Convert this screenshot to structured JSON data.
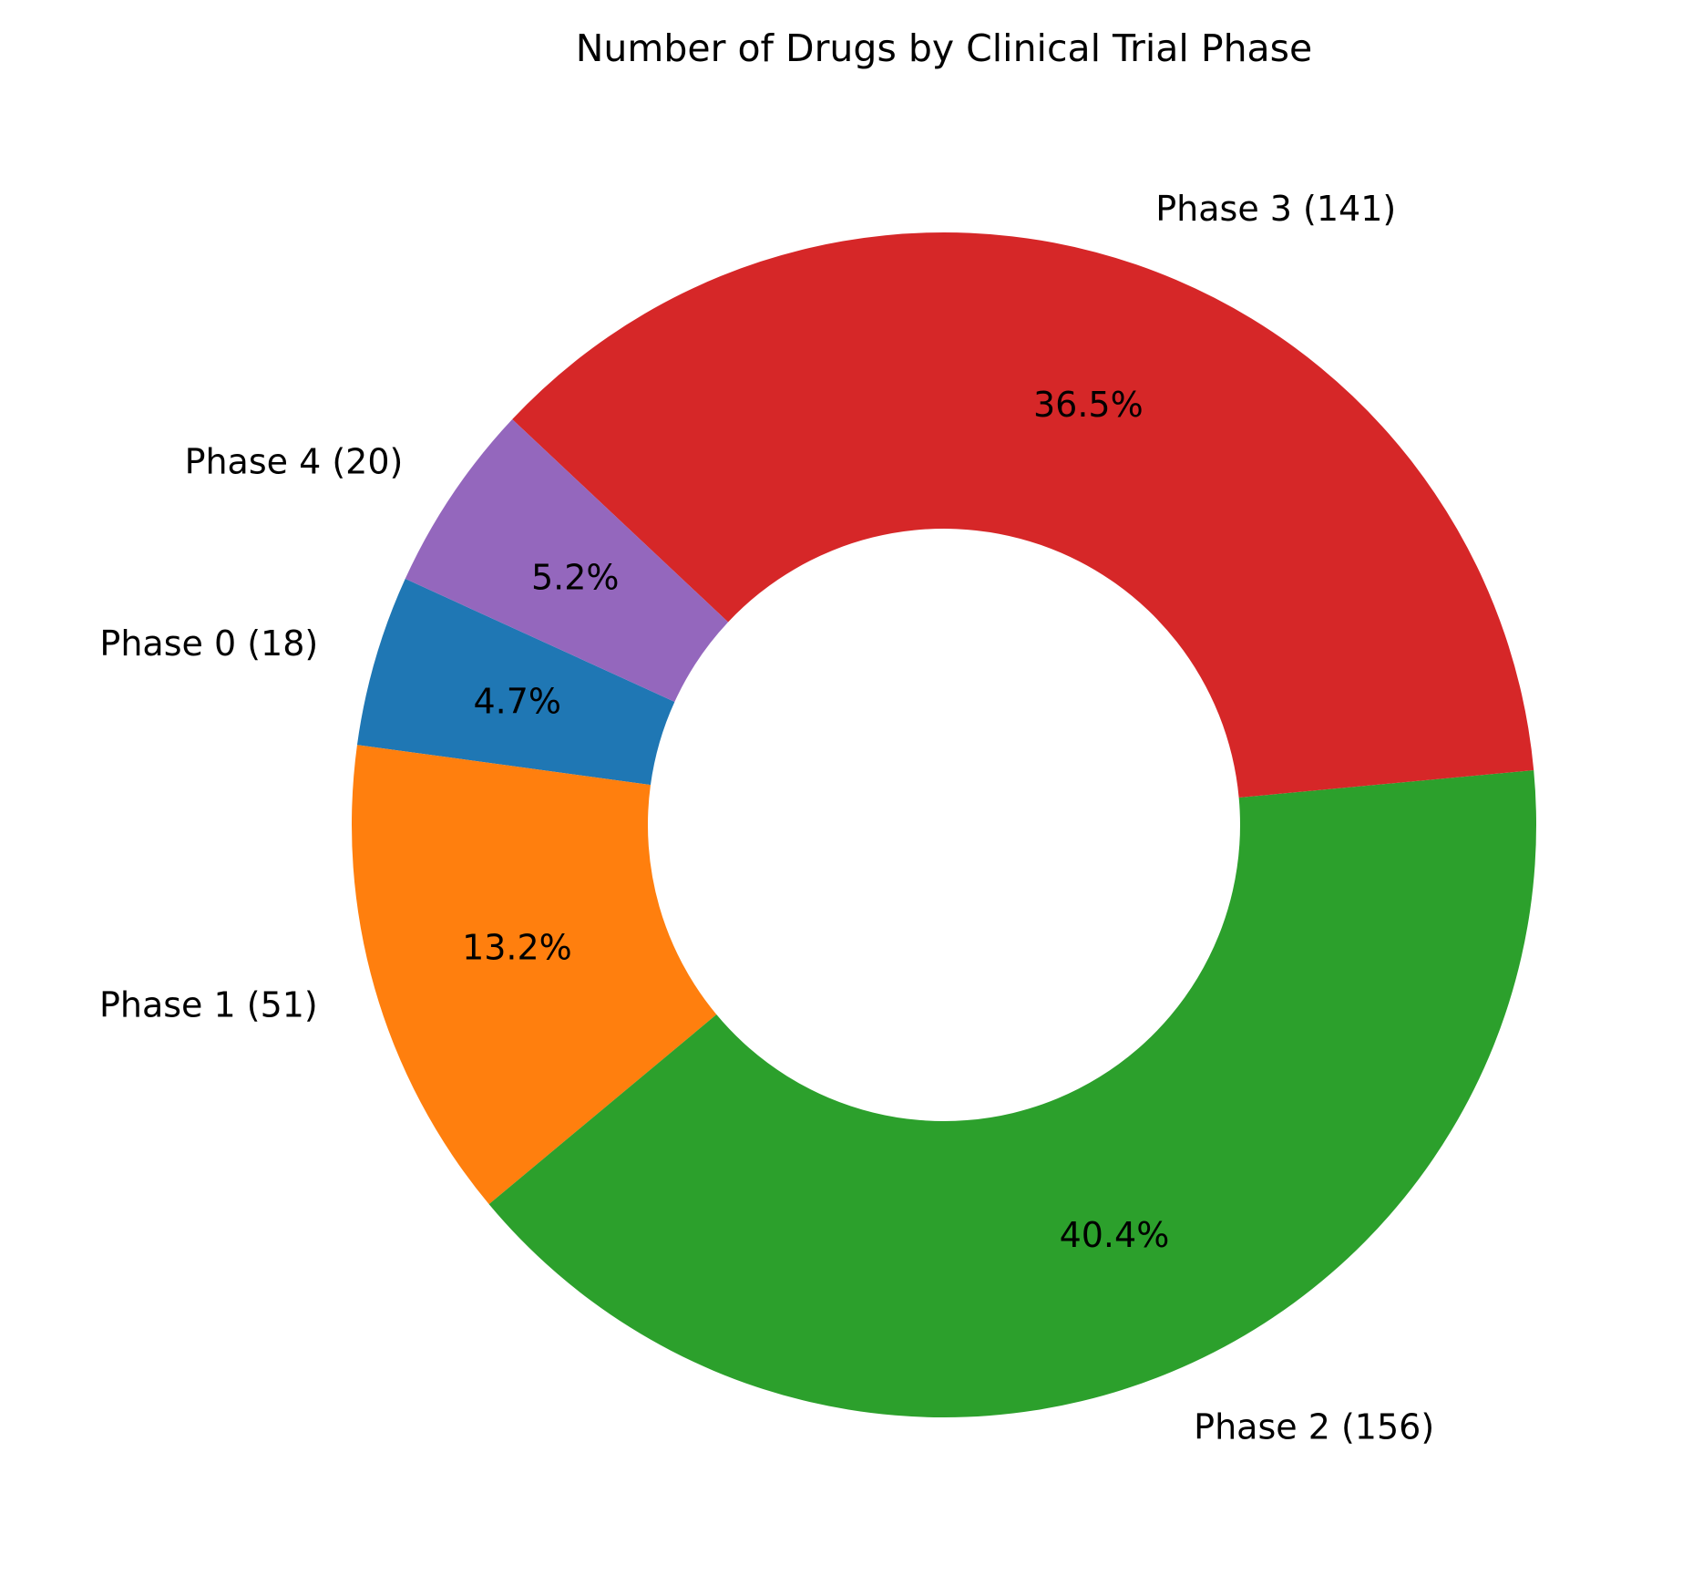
{
  "chart_data": {
    "type": "pie",
    "donut": true,
    "title": "Number of Drugs by Clinical Trial Phase",
    "categories": [
      "Phase 0",
      "Phase 1",
      "Phase 2",
      "Phase 3",
      "Phase 4"
    ],
    "values": [
      18,
      51,
      156,
      141,
      20
    ],
    "labels": [
      "Phase 0 (18)",
      "Phase 1 (51)",
      "Phase 2 (156)",
      "Phase 3 (141)",
      "Phase 4 (20)"
    ],
    "percent_labels": [
      "4.7%",
      "13.2%",
      "40.4%",
      "36.5%",
      "5.2%"
    ],
    "colors": [
      "#1f77b4",
      "#ff7f0e",
      "#2ca02c",
      "#d62728",
      "#9467bd"
    ],
    "start_angle_deg": 155.45,
    "direction": "counterclockwise",
    "hole_ratio": 0.5,
    "legend": "none"
  }
}
